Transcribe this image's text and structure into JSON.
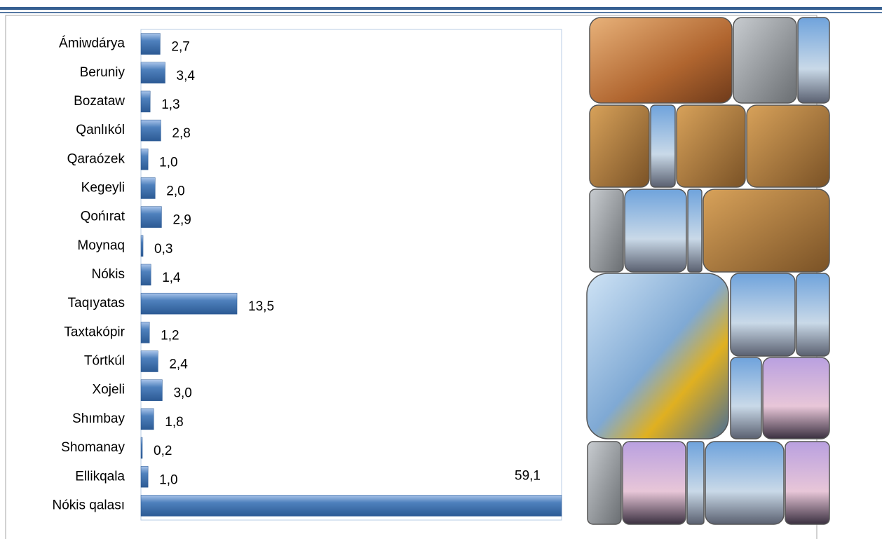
{
  "chart_data": {
    "type": "bar",
    "orientation": "horizontal",
    "categories": [
      "Ámiwdárya",
      "Beruniy",
      "Bozataw",
      "Qanlıkól",
      "Qaraózek",
      "Kegeyli",
      "Qońırat",
      "Moynaq",
      "Nókis ",
      "Taqıyatas",
      "Taxtakópir",
      "Tórtkúl",
      "Xojeli",
      "Shımbay",
      "Shomanay",
      "Ellikqala",
      "Nókis qalası"
    ],
    "values": [
      2.7,
      3.4,
      1.3,
      2.8,
      1.0,
      2.0,
      2.9,
      0.3,
      1.4,
      13.5,
      1.2,
      2.4,
      3.0,
      1.8,
      0.2,
      1.0,
      59.1
    ],
    "value_labels": [
      "2,7",
      "3,4",
      "1,3",
      "2,8",
      "1,0",
      "2,0",
      "2,9",
      "0,3",
      "1,4",
      "13,5",
      "1,2",
      "2,4",
      "3,0",
      "1,8",
      "0,2",
      "1,0",
      "59,1"
    ],
    "color": "#4f81bd"
  }
}
